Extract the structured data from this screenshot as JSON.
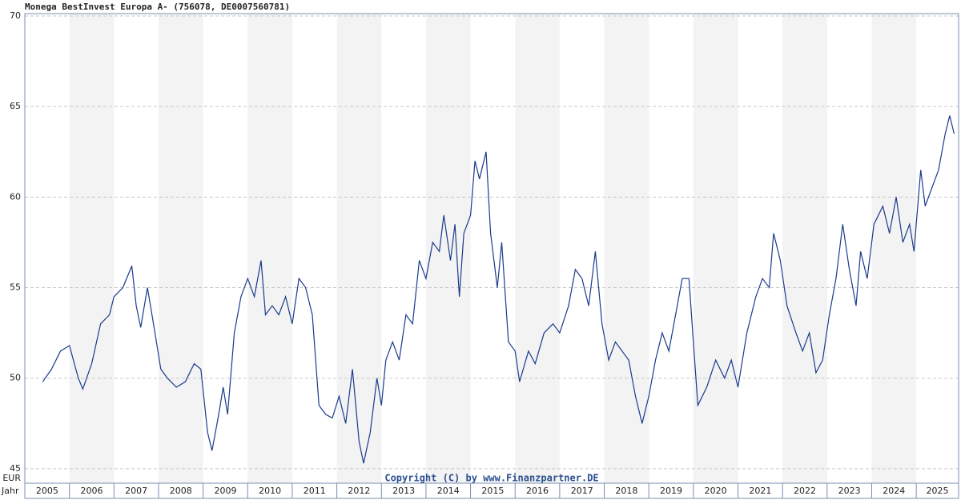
{
  "chart_data": {
    "type": "line",
    "title": "Monega BestInvest Europa A- (756078, DE0007560781)",
    "y_label": "EUR",
    "x_label": "Jahr",
    "copyright": "Copyright (C) by www.Finanzpartner.DE",
    "color": "#1a3a8c",
    "xlim": [
      2005,
      2025.95
    ],
    "ylim": [
      44.2,
      70
    ],
    "yticks": [
      45,
      50,
      55,
      60,
      65,
      70
    ],
    "xticks": [
      2005,
      2006,
      2007,
      2008,
      2009,
      2010,
      2011,
      2012,
      2013,
      2014,
      2015,
      2016,
      2017,
      2018,
      2019,
      2020,
      2021,
      2022,
      2023,
      2024,
      2025
    ],
    "grid": true,
    "x": [
      2005.4,
      2005.6,
      2005.8,
      2006.0,
      2006.2,
      2006.3,
      2006.5,
      2006.7,
      2006.9,
      2007.0,
      2007.2,
      2007.4,
      2007.5,
      2007.6,
      2007.75,
      2007.9,
      2008.05,
      2008.2,
      2008.4,
      2008.6,
      2008.8,
      2008.95,
      2009.1,
      2009.2,
      2009.35,
      2009.45,
      2009.55,
      2009.7,
      2009.85,
      2010.0,
      2010.15,
      2010.3,
      2010.4,
      2010.55,
      2010.7,
      2010.85,
      2011.0,
      2011.15,
      2011.3,
      2011.45,
      2011.6,
      2011.75,
      2011.9,
      2012.05,
      2012.2,
      2012.35,
      2012.5,
      2012.6,
      2012.75,
      2012.9,
      2013.0,
      2013.1,
      2013.25,
      2013.4,
      2013.55,
      2013.7,
      2013.85,
      2014.0,
      2014.15,
      2014.3,
      2014.4,
      2014.55,
      2014.65,
      2014.75,
      2014.85,
      2015.0,
      2015.1,
      2015.2,
      2015.35,
      2015.45,
      2015.6,
      2015.7,
      2015.85,
      2016.0,
      2016.1,
      2016.3,
      2016.45,
      2016.65,
      2016.85,
      2017.0,
      2017.2,
      2017.35,
      2017.5,
      2017.65,
      2017.8,
      2017.95,
      2018.1,
      2018.25,
      2018.4,
      2018.55,
      2018.7,
      2018.85,
      2019.0,
      2019.15,
      2019.3,
      2019.45,
      2019.6,
      2019.75,
      2019.9,
      2020.0,
      2020.1,
      2020.3,
      2020.5,
      2020.7,
      2020.85,
      2021.0,
      2021.2,
      2021.4,
      2021.55,
      2021.7,
      2021.8,
      2021.95,
      2022.1,
      2022.3,
      2022.45,
      2022.6,
      2022.75,
      2022.9,
      2023.05,
      2023.2,
      2023.35,
      2023.5,
      2023.65,
      2023.75,
      2023.9,
      2024.05,
      2024.25,
      2024.4,
      2024.55,
      2024.7,
      2024.85,
      2024.95,
      2025.1,
      2025.2,
      2025.35,
      2025.5,
      2025.65,
      2025.75,
      2025.85
    ],
    "values": [
      49.8,
      50.5,
      51.5,
      51.8,
      50.0,
      49.4,
      50.8,
      53.0,
      53.5,
      54.5,
      55.0,
      56.2,
      54.0,
      52.8,
      55.0,
      52.8,
      50.5,
      50.0,
      49.5,
      49.8,
      50.8,
      50.5,
      47.0,
      46.0,
      48.0,
      49.5,
      48.0,
      52.5,
      54.5,
      55.5,
      54.5,
      56.5,
      53.5,
      54.0,
      53.5,
      54.5,
      53.0,
      55.5,
      55.0,
      53.5,
      48.5,
      48.0,
      47.8,
      49.0,
      47.5,
      50.5,
      46.5,
      45.3,
      47.0,
      50.0,
      48.5,
      51.0,
      52.0,
      51.0,
      53.5,
      53.0,
      56.5,
      55.5,
      57.5,
      57.0,
      59.0,
      56.5,
      58.5,
      54.5,
      58.0,
      59.0,
      62.0,
      61.0,
      62.5,
      58.0,
      55.0,
      57.5,
      52.0,
      51.5,
      49.8,
      51.5,
      50.8,
      52.5,
      53.0,
      52.5,
      54.0,
      56.0,
      55.5,
      54.0,
      57.0,
      53.0,
      51.0,
      52.0,
      51.5,
      51.0,
      49.0,
      47.5,
      49.0,
      51.0,
      52.5,
      51.5,
      53.5,
      55.5,
      55.5,
      52.0,
      48.5,
      49.5,
      51.0,
      50.0,
      51.0,
      49.5,
      52.5,
      54.5,
      55.5,
      55.0,
      58.0,
      56.5,
      54.0,
      52.5,
      51.5,
      52.5,
      50.3,
      51.0,
      53.5,
      55.5,
      58.5,
      56.0,
      54.0,
      57.0,
      55.5,
      58.5,
      59.5,
      58.0,
      60.0,
      57.5,
      58.5,
      57.0,
      61.5,
      59.5,
      60.5,
      61.5,
      63.5,
      64.5,
      63.5
    ]
  }
}
